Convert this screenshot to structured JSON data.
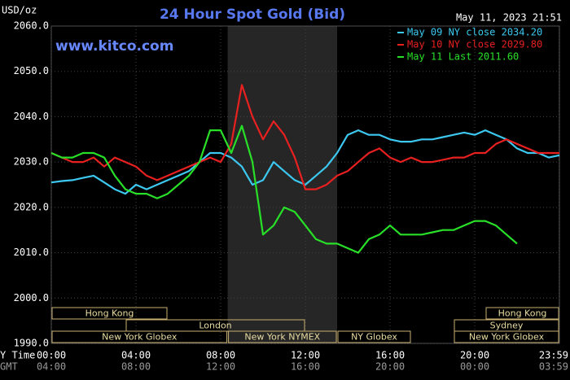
{
  "chart_data": {
    "type": "line",
    "title": "24 Hour Spot Gold (Bid)",
    "y_label": "USD/oz",
    "timestamp": "May 11, 2023 21:51",
    "watermark": "www.kitco.com",
    "x_row_label": "Y Time",
    "x2_row_label": "GMT",
    "xlim": [
      0,
      24
    ],
    "ylim": [
      1990,
      2060
    ],
    "grid": true,
    "yticks": [
      {
        "value": 1990,
        "label": "1990.0"
      },
      {
        "value": 2000,
        "label": "2000.0"
      },
      {
        "value": 2010,
        "label": "2010.0"
      },
      {
        "value": 2020,
        "label": "2020.0"
      },
      {
        "value": 2030,
        "label": "2030.0"
      },
      {
        "value": 2040,
        "label": "2040.0"
      },
      {
        "value": 2050,
        "label": "2050.0"
      },
      {
        "value": 2060,
        "label": "2060.0"
      }
    ],
    "xticks": [
      {
        "value": 0,
        "label": "00:00"
      },
      {
        "value": 4,
        "label": "04:00"
      },
      {
        "value": 8,
        "label": "08:00"
      },
      {
        "value": 12,
        "label": "12:00"
      },
      {
        "value": 16,
        "label": "16:00"
      },
      {
        "value": 20,
        "label": "20:00"
      },
      {
        "value": 23.98,
        "label": "23:59"
      }
    ],
    "x2ticks": [
      {
        "value": 0,
        "label": "04:00"
      },
      {
        "value": 4,
        "label": "08:00"
      },
      {
        "value": 8,
        "label": "12:00"
      },
      {
        "value": 12,
        "label": "16:00"
      },
      {
        "value": 16,
        "label": "20:00"
      },
      {
        "value": 20,
        "label": "00:00"
      },
      {
        "value": 23.98,
        "label": "03:59"
      }
    ],
    "x": [
      0,
      0.5,
      1,
      1.5,
      2,
      2.5,
      3,
      3.5,
      4,
      4.5,
      5,
      5.5,
      6,
      6.5,
      7,
      7.5,
      8,
      8.5,
      9,
      9.5,
      10,
      10.5,
      11,
      11.5,
      12,
      12.5,
      13,
      13.5,
      14,
      14.5,
      15,
      15.5,
      16,
      16.5,
      17,
      17.5,
      18,
      18.5,
      19,
      19.5,
      20,
      20.5,
      21,
      21.5,
      22,
      22.5,
      23,
      23.5,
      24
    ],
    "series": [
      {
        "name": "May 09 NY close 2034.20",
        "color": "#3cc8f0",
        "values": [
          2025.5,
          2025.8,
          2026,
          2026.5,
          2027,
          2025.5,
          2024,
          2023,
          2025,
          2024,
          2025,
          2026,
          2027,
          2028,
          2030,
          2032,
          2032,
          2031,
          2029,
          2025,
          2026,
          2030,
          2028,
          2026,
          2025,
          2027,
          2029,
          2032,
          2036,
          2037,
          2036,
          2036,
          2035,
          2034.5,
          2034.5,
          2035,
          2035,
          2035.5,
          2036,
          2036.5,
          2036,
          2037,
          2036,
          2035,
          2033,
          2032,
          2032,
          2031,
          2031.5
        ]
      },
      {
        "name": "May 10 NY close 2029.80",
        "color": "#e82020",
        "values": [
          2032,
          2031,
          2030,
          2030,
          2031,
          2029,
          2031,
          2030,
          2029,
          2027,
          2026,
          2027,
          2028,
          2029,
          2030,
          2031,
          2030,
          2034,
          2047,
          2040,
          2035,
          2039,
          2036,
          2031,
          2024,
          2024,
          2025,
          2027,
          2028,
          2030,
          2032,
          2033,
          2031,
          2030,
          2031,
          2030,
          2030,
          2030.5,
          2031,
          2031,
          2032,
          2032,
          2034,
          2035,
          2034,
          2033,
          2032,
          2032,
          2032
        ]
      },
      {
        "name": "May 11 Last 2011.60",
        "color": "#28e028",
        "values": [
          2032,
          2031,
          2031,
          2032,
          2032,
          2031,
          2027,
          2024,
          2023,
          2023,
          2022,
          2023,
          2025,
          2027,
          2030,
          2037,
          2037,
          2032,
          2038,
          2030,
          2014,
          2016,
          2020,
          2019,
          2016,
          2013,
          2012,
          2012,
          2011,
          2010,
          2013,
          2014,
          2016,
          2014,
          2014,
          2014,
          2014.5,
          2015,
          2015,
          2016,
          2017,
          2017,
          2016,
          2014,
          2012,
          null,
          null,
          null,
          null
        ]
      }
    ],
    "sessions": [
      {
        "label": "Hong Kong",
        "start": 0,
        "end": 5.5
      },
      {
        "label": "London",
        "start": 3.5,
        "end": 12
      },
      {
        "label": "New York Globex",
        "start": 0,
        "end": 8.33
      },
      {
        "label": "New York NYMEX",
        "start": 8.33,
        "end": 13.5,
        "highlight": true
      },
      {
        "label": "NY Globex",
        "start": 13.5,
        "end": 17
      },
      {
        "label": "Hong Kong",
        "start": 20.5,
        "end": 24
      },
      {
        "label": "Sydney",
        "start": 19,
        "end": 24
      },
      {
        "label": "New York Globex",
        "start": 19,
        "end": 24
      }
    ]
  }
}
